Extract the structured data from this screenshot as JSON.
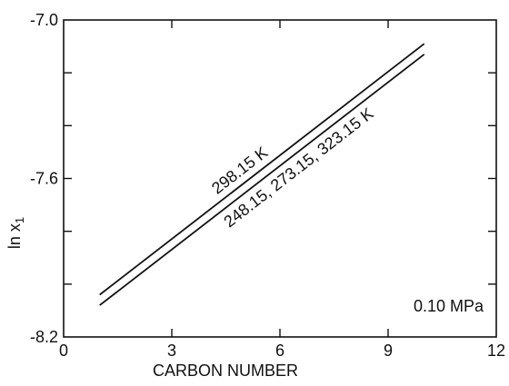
{
  "chart_data": {
    "type": "line",
    "xlabel": "CARBON NUMBER",
    "ylabel": "ln x",
    "ylabel_sub": "1",
    "xlim": [
      0,
      12
    ],
    "ylim": [
      -8.2,
      -7.0
    ],
    "x_ticks": [
      0,
      3,
      6,
      9,
      12
    ],
    "x_tick_labels": [
      "0",
      "3",
      "6",
      "9",
      "12"
    ],
    "y_ticks": [
      -8.2,
      -7.6,
      -7.0
    ],
    "y_tick_labels": [
      "-8.2",
      "-7.6",
      "-7.0"
    ],
    "grid": false,
    "annotation": "0.10 MPa",
    "series": [
      {
        "name": "298.15 K",
        "x": [
          1,
          10
        ],
        "y": [
          -8.04,
          -7.09
        ]
      },
      {
        "name": "248.15, 273.15, 323.15 K",
        "x": [
          1,
          10
        ],
        "y": [
          -8.08,
          -7.13
        ]
      }
    ]
  }
}
